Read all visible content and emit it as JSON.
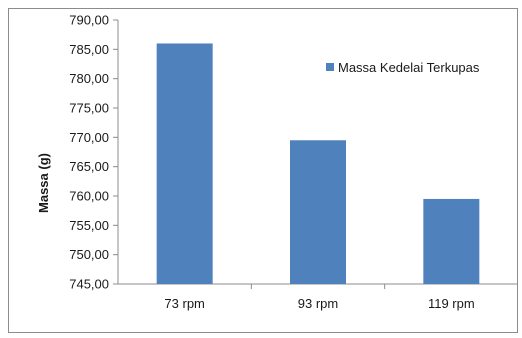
{
  "chart_data": {
    "type": "bar",
    "categories": [
      "73 rpm",
      "93 rpm",
      "119 rpm"
    ],
    "series": [
      {
        "name": "Massa Kedelai Terkupas",
        "values": [
          786.0,
          769.5,
          759.5
        ],
        "color": "#4f81bd"
      }
    ],
    "title": "",
    "xlabel": "",
    "ylabel": "Massa (g)",
    "ylim": [
      745,
      790
    ],
    "yticks": [
      745,
      750,
      755,
      760,
      765,
      770,
      775,
      780,
      785,
      790
    ],
    "ytick_labels": [
      "745,00",
      "750,00",
      "755,00",
      "760,00",
      "765,00",
      "770,00",
      "775,00",
      "780,00",
      "785,00",
      "790,00"
    ],
    "grid": false,
    "legend_position": "top-right"
  }
}
